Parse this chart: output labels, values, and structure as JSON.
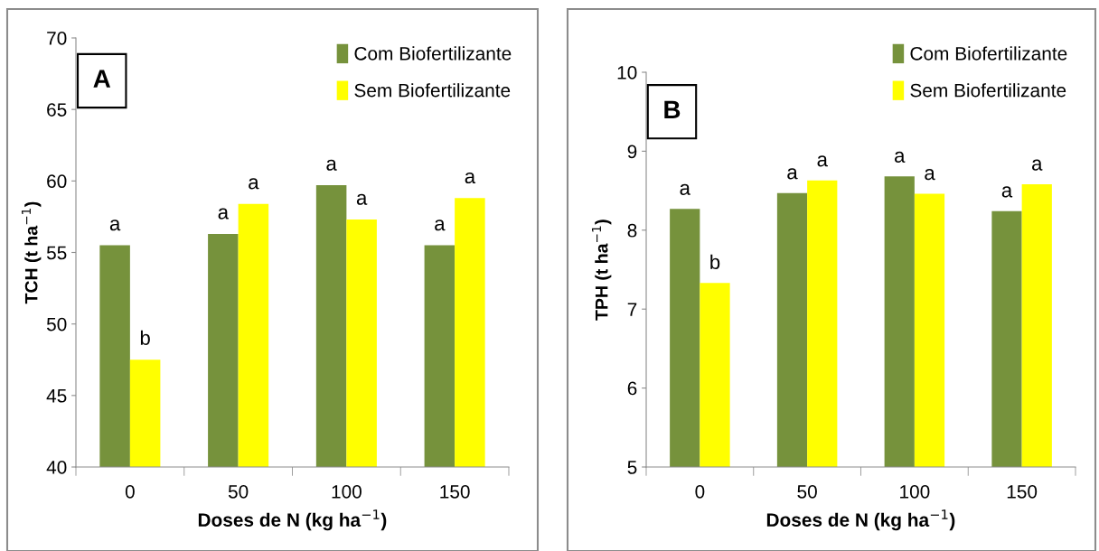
{
  "chart_data": [
    {
      "type": "bar",
      "title": "A",
      "xlabel": "Doses de N (kg ha$^{−1}$)",
      "ylabel": "TCH (t ha$^{−1}$)",
      "categories": [
        "0",
        "50",
        "100",
        "150"
      ],
      "series": [
        {
          "name": "Com Biofertilizante",
          "color": "#76923c",
          "values": [
            55.5,
            56.3,
            59.7,
            55.5
          ]
        },
        {
          "name": "Sem Biofertilizante",
          "color": "#ffff00",
          "values": [
            47.5,
            58.4,
            57.3,
            58.8
          ]
        }
      ],
      "ylim": [
        40,
        70
      ],
      "yticks": [
        40,
        45,
        50,
        55,
        60,
        65,
        70
      ],
      "grid": false,
      "legend": "top right",
      "annotations": [
        {
          "text": "a",
          "x": "0",
          "y": 55.5
        },
        {
          "text": "a",
          "x": "50",
          "y": 56.3
        },
        {
          "text": "a",
          "x": "100",
          "y": 59.7
        },
        {
          "text": "a",
          "x": "150",
          "y": 55.5
        },
        {
          "text": "b",
          "x": "0",
          "y": 47.5
        },
        {
          "text": "a",
          "x": "50",
          "y": 58.4
        },
        {
          "text": "a",
          "x": "100",
          "y": 57.3
        },
        {
          "text": "a",
          "x": "150",
          "y": 58.8
        }
      ]
    },
    {
      "type": "bar",
      "title": "B",
      "xlabel": "Doses de N (kg ha$^{−1}$)",
      "ylabel": "TPH (t ha$^{−1}$)",
      "categories": [
        "0",
        "50",
        "100",
        "150"
      ],
      "series": [
        {
          "name": "Com Biofertilizante",
          "color": "#76923c",
          "values": [
            8.27,
            8.47,
            8.68,
            8.24
          ]
        },
        {
          "name": "Sem Biofertilizante",
          "color": "#ffff00",
          "values": [
            7.33,
            8.63,
            8.46,
            8.58
          ]
        }
      ],
      "ylim": [
        5,
        10
      ],
      "yticks": [
        5,
        6,
        7,
        8,
        9,
        10
      ],
      "grid": false,
      "legend": "top right",
      "annotations": [
        {
          "text": "a",
          "x": "0",
          "y": 8.27
        },
        {
          "text": "a",
          "x": "50",
          "y": 8.47
        },
        {
          "text": "a",
          "x": "100",
          "y": 8.68
        },
        {
          "text": "a",
          "x": "150",
          "y": 8.24
        },
        {
          "text": "b",
          "x": "0",
          "y": 7.33
        },
        {
          "text": "a",
          "x": "50",
          "y": 8.63
        },
        {
          "text": "a",
          "x": "100",
          "y": 8.46
        },
        {
          "text": "a",
          "x": "150",
          "y": 8.58
        }
      ]
    }
  ]
}
